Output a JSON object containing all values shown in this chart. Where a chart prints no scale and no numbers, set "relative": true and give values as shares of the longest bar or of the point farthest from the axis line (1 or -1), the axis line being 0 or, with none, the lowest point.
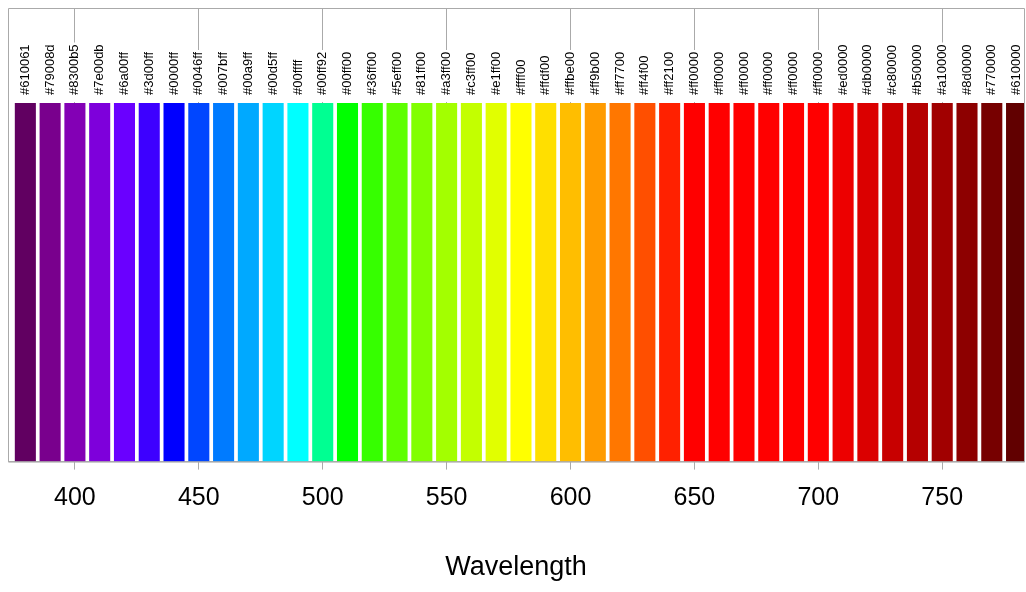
{
  "chart_data": {
    "type": "bar",
    "xlabel": "Wavelength",
    "relative": true,
    "grid": "x",
    "xlim": [
      373,
      783
    ],
    "xticks": [
      400,
      450,
      500,
      550,
      600,
      650,
      700,
      750
    ],
    "x": [
      380,
      390,
      400,
      410,
      420,
      430,
      440,
      450,
      460,
      470,
      480,
      490,
      500,
      510,
      520,
      530,
      540,
      550,
      560,
      570,
      580,
      590,
      600,
      610,
      620,
      630,
      640,
      650,
      660,
      670,
      680,
      690,
      700,
      710,
      720,
      730,
      740,
      750,
      760,
      770,
      780
    ],
    "values": [
      1,
      1,
      1,
      1,
      1,
      1,
      1,
      1,
      1,
      1,
      1,
      1,
      1,
      1,
      1,
      1,
      1,
      1,
      1,
      1,
      1,
      1,
      1,
      1,
      1,
      1,
      1,
      1,
      1,
      1,
      1,
      1,
      1,
      1,
      1,
      1,
      1,
      1,
      1,
      1,
      1
    ],
    "colors": [
      "#610061",
      "#79008d",
      "#8300b5",
      "#7e00db",
      "#6a00ff",
      "#3d00ff",
      "#0000ff",
      "#0046ff",
      "#007bff",
      "#00a9ff",
      "#00d5ff",
      "#00ffff",
      "#00ff92",
      "#00ff00",
      "#36ff00",
      "#5eff00",
      "#81ff00",
      "#a3ff00",
      "#c3ff00",
      "#e1ff00",
      "#ffff00",
      "#ffdf00",
      "#ffbe00",
      "#ff9b00",
      "#ff7700",
      "#ff4f00",
      "#ff2100",
      "#ff0000",
      "#ff0000",
      "#ff0000",
      "#ff0000",
      "#ff0000",
      "#ff0000",
      "#ed0000",
      "#db0000",
      "#c80000",
      "#b50000",
      "#a10000",
      "#8d0000",
      "#770000",
      "#610000"
    ],
    "annotations": [
      {
        "text": "#610061",
        "x": 380,
        "y": 1
      },
      {
        "text": "#79008d",
        "x": 390,
        "y": 1
      },
      {
        "text": "#8300b5",
        "x": 400,
        "y": 1
      },
      {
        "text": "#7e00db",
        "x": 410,
        "y": 1
      },
      {
        "text": "#6a00ff",
        "x": 420,
        "y": 1
      },
      {
        "text": "#3d00ff",
        "x": 430,
        "y": 1
      },
      {
        "text": "#0000ff",
        "x": 440,
        "y": 1
      },
      {
        "text": "#0046ff",
        "x": 450,
        "y": 1
      },
      {
        "text": "#007bff",
        "x": 460,
        "y": 1
      },
      {
        "text": "#00a9ff",
        "x": 470,
        "y": 1
      },
      {
        "text": "#00d5ff",
        "x": 480,
        "y": 1
      },
      {
        "text": "#00ffff",
        "x": 490,
        "y": 1
      },
      {
        "text": "#00ff92",
        "x": 500,
        "y": 1
      },
      {
        "text": "#00ff00",
        "x": 510,
        "y": 1
      },
      {
        "text": "#36ff00",
        "x": 520,
        "y": 1
      },
      {
        "text": "#5eff00",
        "x": 530,
        "y": 1
      },
      {
        "text": "#81ff00",
        "x": 540,
        "y": 1
      },
      {
        "text": "#a3ff00",
        "x": 550,
        "y": 1
      },
      {
        "text": "#c3ff00",
        "x": 560,
        "y": 1
      },
      {
        "text": "#e1ff00",
        "x": 570,
        "y": 1
      },
      {
        "text": "#ffff00",
        "x": 580,
        "y": 1
      },
      {
        "text": "#ffdf00",
        "x": 590,
        "y": 1
      },
      {
        "text": "#ffbe00",
        "x": 600,
        "y": 1
      },
      {
        "text": "#ff9b00",
        "x": 610,
        "y": 1
      },
      {
        "text": "#ff7700",
        "x": 620,
        "y": 1
      },
      {
        "text": "#ff4f00",
        "x": 630,
        "y": 1
      },
      {
        "text": "#ff2100",
        "x": 640,
        "y": 1
      },
      {
        "text": "#ff0000",
        "x": 650,
        "y": 1
      },
      {
        "text": "#ff0000",
        "x": 660,
        "y": 1
      },
      {
        "text": "#ff0000",
        "x": 670,
        "y": 1
      },
      {
        "text": "#ff0000",
        "x": 680,
        "y": 1
      },
      {
        "text": "#ff0000",
        "x": 690,
        "y": 1
      },
      {
        "text": "#ff0000",
        "x": 700,
        "y": 1
      },
      {
        "text": "#ed0000",
        "x": 710,
        "y": 1
      },
      {
        "text": "#db0000",
        "x": 720,
        "y": 1
      },
      {
        "text": "#c80000",
        "x": 730,
        "y": 1
      },
      {
        "text": "#b50000",
        "x": 740,
        "y": 1
      },
      {
        "text": "#a10000",
        "x": 750,
        "y": 1
      },
      {
        "text": "#8d0000",
        "x": 760,
        "y": 1
      },
      {
        "text": "#770000",
        "x": 770,
        "y": 1
      },
      {
        "text": "#610000",
        "x": 780,
        "y": 1
      }
    ]
  }
}
